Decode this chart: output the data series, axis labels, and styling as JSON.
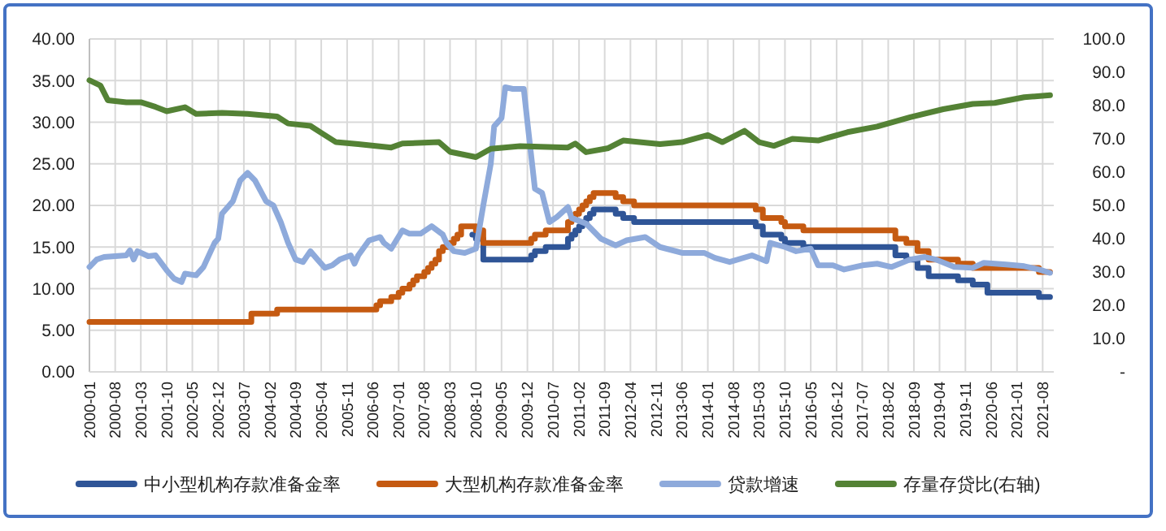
{
  "chart_data": {
    "type": "line",
    "xlim": [
      "2000-01",
      "2021-11"
    ],
    "xticks": [
      "2000-01",
      "2000-08",
      "2001-03",
      "2001-10",
      "2002-05",
      "2002-12",
      "2003-07",
      "2004-02",
      "2004-09",
      "2005-04",
      "2005-11",
      "2006-06",
      "2007-01",
      "2007-08",
      "2008-03",
      "2008-10",
      "2009-05",
      "2009-12",
      "2010-07",
      "2011-02",
      "2011-09",
      "2012-04",
      "2012-11",
      "2013-06",
      "2014-01",
      "2014-08",
      "2015-03",
      "2015-10",
      "2016-05",
      "2016-12",
      "2017-07",
      "2018-02",
      "2018-09",
      "2019-04",
      "2019-11",
      "2020-06",
      "2021-01",
      "2021-08"
    ],
    "ylim": [
      0,
      40
    ],
    "yticks": [
      {
        "value": 0,
        "label": "0.00"
      },
      {
        "value": 5,
        "label": "5.00"
      },
      {
        "value": 10,
        "label": "10.00"
      },
      {
        "value": 15,
        "label": "15.00"
      },
      {
        "value": 20,
        "label": "20.00"
      },
      {
        "value": 25,
        "label": "25.00"
      },
      {
        "value": 30,
        "label": "30.00"
      },
      {
        "value": 35,
        "label": "35.00"
      },
      {
        "value": 40,
        "label": "40.00"
      }
    ],
    "y2lim": [
      0,
      100
    ],
    "y2ticks": [
      {
        "value": 0,
        "label": "-"
      },
      {
        "value": 10,
        "label": "10.0"
      },
      {
        "value": 20,
        "label": "20.0"
      },
      {
        "value": 30,
        "label": "30.0"
      },
      {
        "value": 40,
        "label": "40.0"
      },
      {
        "value": 50,
        "label": "50.0"
      },
      {
        "value": 60,
        "label": "60.0"
      },
      {
        "value": 70,
        "label": "70.0"
      },
      {
        "value": 80,
        "label": "80.0"
      },
      {
        "value": 90,
        "label": "90.0"
      },
      {
        "value": 100,
        "label": "100.0"
      }
    ],
    "grid": true,
    "legend": "bottom",
    "series": [
      {
        "name": "中小型机构存款准备金率",
        "type": "step",
        "color": "#2f5597",
        "x": [
          "2008-09",
          "2008-10",
          "2008-12",
          "2010-01",
          "2010-02",
          "2010-05",
          "2010-11",
          "2010-12",
          "2011-01",
          "2011-02",
          "2011-03",
          "2011-04",
          "2011-05",
          "2011-06",
          "2011-12",
          "2012-02",
          "2012-05",
          "2015-02",
          "2015-04",
          "2015-09",
          "2015-10",
          "2016-03",
          "2018-04",
          "2018-07",
          "2018-10",
          "2019-01",
          "2019-09",
          "2020-01",
          "2020-05",
          "2021-07",
          "2021-10"
        ],
        "values": [
          16.5,
          16,
          13.5,
          14,
          14.5,
          15,
          16,
          16.5,
          17,
          17.5,
          18,
          18.5,
          19,
          19.5,
          19,
          18.5,
          18,
          17.5,
          16.5,
          16,
          15.5,
          15,
          14,
          13.5,
          12.5,
          11.5,
          11,
          10.5,
          9.5,
          9,
          9
        ]
      },
      {
        "name": "大型机构存款准备金率",
        "type": "step",
        "color": "#c55a11",
        "x": [
          "2000-01",
          "2003-09",
          "2004-04",
          "2006-07",
          "2006-08",
          "2006-11",
          "2007-01",
          "2007-02",
          "2007-04",
          "2007-05",
          "2007-06",
          "2007-08",
          "2007-09",
          "2007-10",
          "2007-11",
          "2007-12",
          "2008-01",
          "2008-03",
          "2008-04",
          "2008-05",
          "2008-06",
          "2008-10",
          "2008-12",
          "2010-01",
          "2010-02",
          "2010-05",
          "2010-11",
          "2010-12",
          "2011-01",
          "2011-02",
          "2011-03",
          "2011-04",
          "2011-05",
          "2011-06",
          "2011-12",
          "2012-02",
          "2012-05",
          "2015-02",
          "2015-04",
          "2015-09",
          "2015-10",
          "2016-03",
          "2018-04",
          "2018-07",
          "2018-10",
          "2019-01",
          "2019-09",
          "2020-01",
          "2021-07",
          "2021-10"
        ],
        "values": [
          6,
          7,
          7.5,
          8,
          8.5,
          9,
          9.5,
          10,
          10.5,
          11,
          11.5,
          12,
          12.5,
          13,
          13.5,
          14.5,
          15,
          15.5,
          16,
          16.5,
          17.5,
          17,
          15.5,
          16,
          16.5,
          17,
          18,
          18.5,
          19,
          19.5,
          20,
          20.5,
          21,
          21.5,
          21,
          20.5,
          20,
          19.5,
          18.5,
          18,
          17.5,
          17,
          16,
          15.5,
          14.5,
          13.5,
          13,
          12.5,
          12,
          12
        ]
      },
      {
        "name": "贷款增速",
        "color": "#8eaadb",
        "x": [
          "2000-01",
          "2000-03",
          "2000-05",
          "2000-11",
          "2000-12",
          "2001-01",
          "2001-02",
          "2001-05",
          "2001-07",
          "2001-10",
          "2001-12",
          "2002-02",
          "2002-03",
          "2002-06",
          "2002-08",
          "2002-11",
          "2002-12",
          "2003-01",
          "2003-04",
          "2003-06",
          "2003-08",
          "2003-10",
          "2004-01",
          "2004-03",
          "2004-05",
          "2004-07",
          "2004-09",
          "2004-11",
          "2005-01",
          "2005-03",
          "2005-05",
          "2005-07",
          "2005-09",
          "2005-12",
          "2006-01",
          "2006-02",
          "2006-05",
          "2006-08",
          "2006-09",
          "2006-11",
          "2007-02",
          "2007-04",
          "2007-07",
          "2007-10",
          "2008-01",
          "2008-02",
          "2008-04",
          "2008-07",
          "2008-10",
          "2008-12",
          "2009-02",
          "2009-03",
          "2009-05",
          "2009-06",
          "2009-08",
          "2009-11",
          "2009-12",
          "2010-02",
          "2010-04",
          "2010-06",
          "2010-08",
          "2010-11",
          "2010-12",
          "2011-04",
          "2011-08",
          "2011-12",
          "2012-03",
          "2012-08",
          "2012-12",
          "2013-06",
          "2013-12",
          "2014-03",
          "2014-07",
          "2015-01",
          "2015-05",
          "2015-06",
          "2015-10",
          "2016-01",
          "2016-05",
          "2016-07",
          "2016-11",
          "2017-02",
          "2017-07",
          "2017-11",
          "2018-03",
          "2018-08",
          "2018-12",
          "2019-03",
          "2019-08",
          "2020-01",
          "2020-04",
          "2020-10",
          "2021-03",
          "2021-07",
          "2021-10"
        ],
        "values": [
          12.6,
          13.5,
          13.8,
          14.0,
          14.6,
          13.5,
          14.5,
          13.9,
          14.0,
          12.2,
          11.2,
          10.8,
          11.8,
          11.6,
          12.6,
          15.5,
          16.0,
          19.0,
          20.5,
          23.0,
          23.9,
          23.0,
          20.5,
          20.0,
          18.0,
          15.5,
          13.5,
          13.2,
          14.5,
          13.5,
          12.5,
          12.8,
          13.5,
          14.0,
          13.0,
          14.0,
          15.8,
          16.2,
          15.5,
          14.8,
          17.0,
          16.6,
          16.6,
          17.5,
          16.5,
          15.5,
          14.5,
          14.3,
          14.8,
          20.0,
          25.0,
          29.5,
          30.5,
          34.2,
          34.0,
          34.0,
          30.0,
          22.0,
          21.5,
          18.0,
          18.6,
          19.8,
          18.5,
          17.8,
          16.0,
          15.2,
          15.8,
          16.2,
          15.0,
          14.3,
          14.3,
          13.7,
          13.2,
          14.0,
          13.3,
          15.5,
          15.0,
          14.5,
          14.8,
          12.8,
          12.8,
          12.3,
          12.8,
          13.0,
          12.6,
          13.5,
          13.8,
          13.5,
          12.6,
          12.5,
          13.1,
          12.9,
          12.7,
          12.3,
          11.9
        ]
      },
      {
        "name": "存量存贷比(右轴)",
        "axis": "y2",
        "color": "#548235",
        "x": [
          "2000-01",
          "2000-04",
          "2000-06",
          "2000-11",
          "2001-03",
          "2001-07",
          "2001-10",
          "2002-03",
          "2002-06",
          "2003-01",
          "2003-08",
          "2004-04",
          "2004-07",
          "2005-01",
          "2005-04",
          "2005-08",
          "2006-02",
          "2006-11",
          "2007-02",
          "2007-12",
          "2008-03",
          "2008-10",
          "2009-02",
          "2009-10",
          "2010-11",
          "2011-01",
          "2011-04",
          "2011-10",
          "2012-02",
          "2012-12",
          "2013-06",
          "2014-01",
          "2014-05",
          "2014-11",
          "2015-03",
          "2015-07",
          "2015-12",
          "2016-07",
          "2017-03",
          "2017-11",
          "2018-08",
          "2019-05",
          "2020-01",
          "2020-07",
          "2021-03",
          "2021-10"
        ],
        "values": [
          87.6,
          86.0,
          81.6,
          81.0,
          81.0,
          79.6,
          78.3,
          79.5,
          77.5,
          77.8,
          77.5,
          76.7,
          74.6,
          73.9,
          71.8,
          69.0,
          68.4,
          67.4,
          68.6,
          69.0,
          66.1,
          64.5,
          67.0,
          67.8,
          67.4,
          68.6,
          66.0,
          67.2,
          69.5,
          68.4,
          69.0,
          71.1,
          69.0,
          72.4,
          69.0,
          67.9,
          70.0,
          69.5,
          72.0,
          73.7,
          76.5,
          78.9,
          80.5,
          80.8,
          82.5,
          83.1
        ]
      }
    ]
  }
}
